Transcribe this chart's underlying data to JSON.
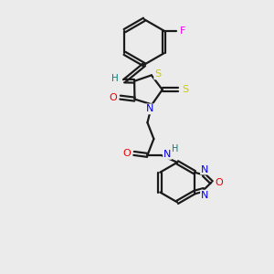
{
  "bg_color": "#ebebeb",
  "bond_color": "#1a1a1a",
  "atom_colors": {
    "S": "#cccc00",
    "N": "#0000ee",
    "O": "#ee0000",
    "F": "#ee00ee",
    "H_teal": "#008080",
    "C": "#1a1a1a"
  }
}
